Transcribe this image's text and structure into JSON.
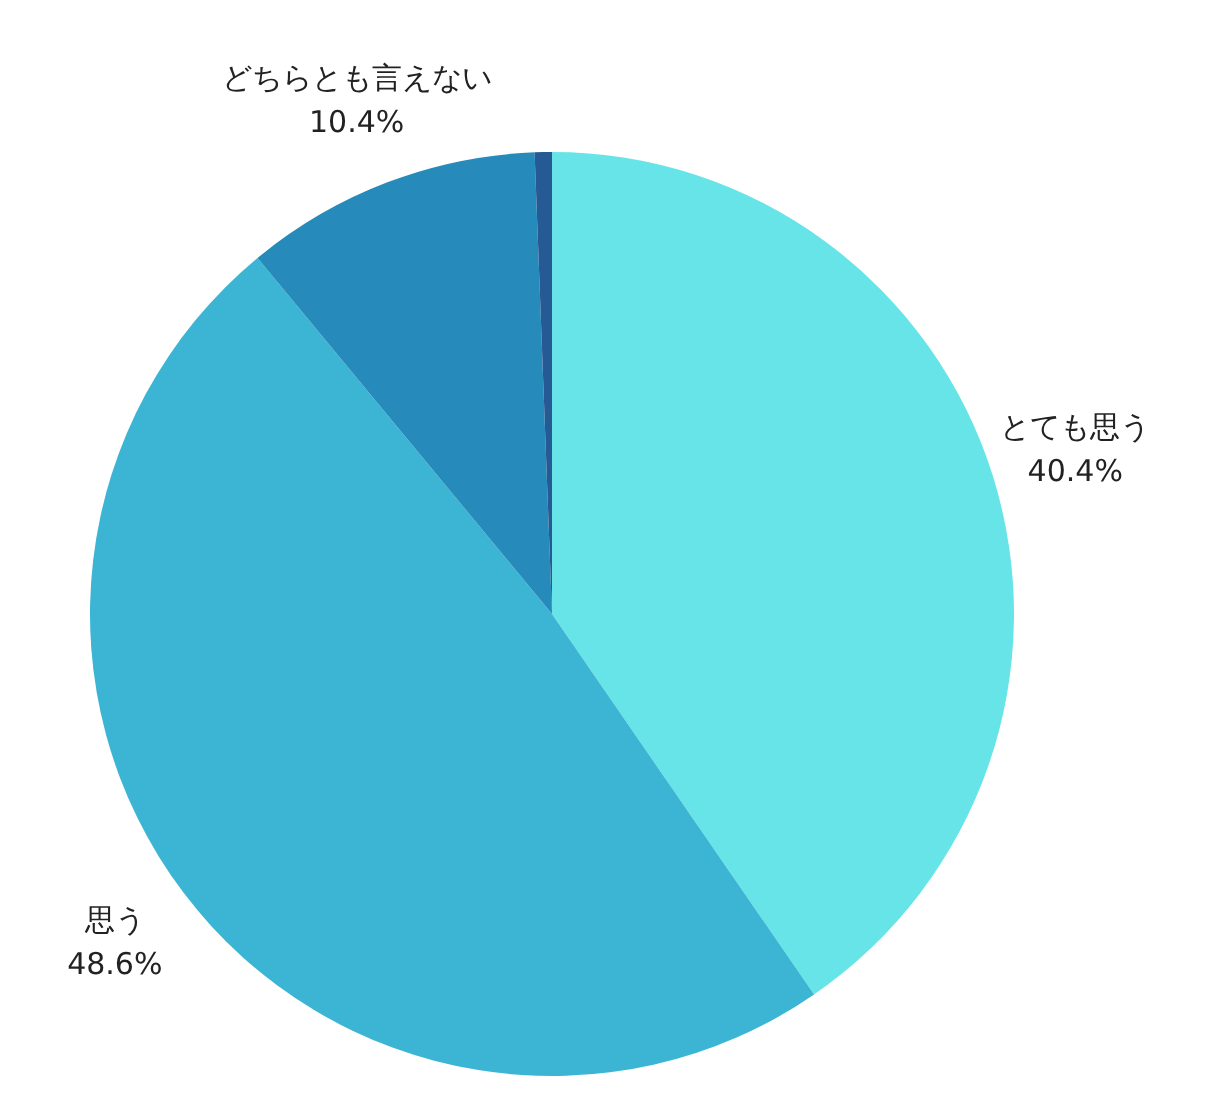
{
  "chart_data": {
    "type": "pie",
    "categories": [
      "とても思う",
      "思う",
      "どちらとも言えない",
      null
    ],
    "values": [
      40.4,
      48.6,
      10.4,
      0.6
    ],
    "colors": [
      "#67e4e8",
      "#3bb5d3",
      "#268bbb",
      "#255a94"
    ],
    "value_labels": [
      "40.4%",
      "48.6%",
      "10.4%",
      null
    ]
  }
}
